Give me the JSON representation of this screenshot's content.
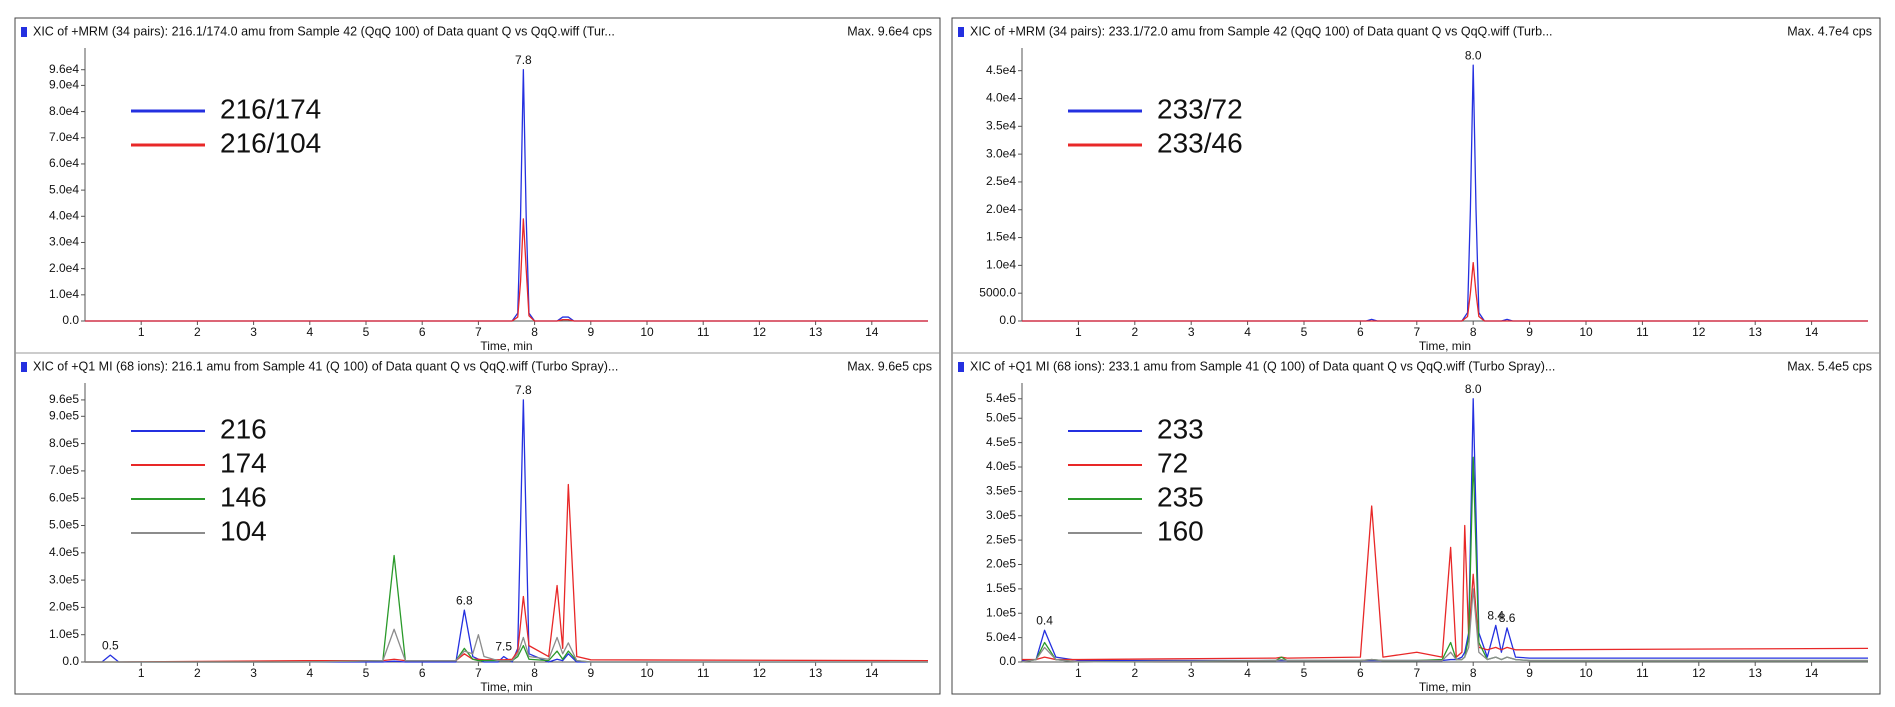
{
  "chart_data": [
    {
      "type": "line",
      "title": "XIC of +MRM (34 pairs): 216.1/174.0 amu from Sample 42 (QqQ 100) of Data quant Q vs QqQ.wiff (Tur...",
      "max_label": "Max. 9.6e4 cps",
      "x_label": "Time, min",
      "xlim": [
        0,
        15
      ],
      "xticks": [
        1,
        2,
        3,
        4,
        5,
        6,
        7,
        8,
        9,
        10,
        11,
        12,
        13,
        14
      ],
      "ylim": [
        0,
        102000
      ],
      "yticks": [
        {
          "value": 0,
          "label": "0.0"
        },
        {
          "value": 10000,
          "label": "1.0e4"
        },
        {
          "value": 20000,
          "label": "2.0e4"
        },
        {
          "value": 30000,
          "label": "3.0e4"
        },
        {
          "value": 40000,
          "label": "4.0e4"
        },
        {
          "value": 50000,
          "label": "5.0e4"
        },
        {
          "value": 60000,
          "label": "6.0e4"
        },
        {
          "value": 70000,
          "label": "7.0e4"
        },
        {
          "value": 80000,
          "label": "8.0e4"
        },
        {
          "value": 90000,
          "label": "9.0e4"
        },
        {
          "value": 96000,
          "label": "9.6e4"
        }
      ],
      "x": [
        0,
        7.6,
        7.7,
        7.75,
        7.8,
        7.85,
        7.9,
        8.0,
        8.4,
        8.5,
        8.6,
        8.7,
        15
      ],
      "series": [
        {
          "name": "216/174",
          "color": "#2430e0",
          "values": [
            0,
            0,
            3000,
            40000,
            96000,
            40000,
            3000,
            0,
            0,
            1500,
            1500,
            0,
            0
          ]
        },
        {
          "name": "216/104",
          "color": "#e82828",
          "values": [
            0,
            0,
            1500,
            15000,
            39000,
            20000,
            2000,
            0,
            0,
            500,
            500,
            0,
            0
          ]
        }
      ],
      "peak_labels": [
        {
          "x": 7.8,
          "y": 96000,
          "label": "7.8"
        }
      ]
    },
    {
      "type": "line",
      "title": "XIC of +MRM (34 pairs): 233.1/72.0 amu from Sample 42 (QqQ 100) of Data quant Q vs QqQ.wiff (Turb...",
      "max_label": "Max. 4.7e4 cps",
      "x_label": "Time, min",
      "xlim": [
        0,
        15
      ],
      "xticks": [
        1,
        2,
        3,
        4,
        5,
        6,
        7,
        8,
        9,
        10,
        11,
        12,
        13,
        14
      ],
      "ylim": [
        0,
        48000
      ],
      "yticks": [
        {
          "value": 0,
          "label": "0.0"
        },
        {
          "value": 5000,
          "label": "5000.0"
        },
        {
          "value": 10000,
          "label": "1.0e4"
        },
        {
          "value": 15000,
          "label": "1.5e4"
        },
        {
          "value": 20000,
          "label": "2.0e4"
        },
        {
          "value": 25000,
          "label": "2.5e4"
        },
        {
          "value": 30000,
          "label": "3.0e4"
        },
        {
          "value": 35000,
          "label": "3.5e4"
        },
        {
          "value": 40000,
          "label": "4.0e4"
        },
        {
          "value": 45000,
          "label": "4.5e4"
        }
      ],
      "x": [
        0,
        6.1,
        6.2,
        6.3,
        7.8,
        7.9,
        7.95,
        8.0,
        8.05,
        8.1,
        8.2,
        8.5,
        8.6,
        8.7,
        15
      ],
      "series": [
        {
          "name": "233/72",
          "color": "#2430e0",
          "values": [
            0,
            0,
            300,
            0,
            0,
            1500,
            20000,
            46000,
            20000,
            1500,
            0,
            0,
            300,
            0,
            0
          ]
        },
        {
          "name": "233/46",
          "color": "#e82828",
          "values": [
            0,
            0,
            0,
            0,
            0,
            800,
            5000,
            10500,
            5000,
            800,
            0,
            0,
            0,
            0,
            0
          ]
        }
      ],
      "peak_labels": [
        {
          "x": 8.0,
          "y": 46000,
          "label": "8.0"
        }
      ]
    },
    {
      "type": "line",
      "title": "XIC of +Q1 MI (68 ions): 216.1 amu from Sample 41 (Q 100) of Data quant Q vs QqQ.wiff (Turbo Spray)...",
      "max_label": "Max. 9.6e5 cps",
      "x_label": "Time, min",
      "xlim": [
        0,
        15
      ],
      "xticks": [
        1,
        2,
        3,
        4,
        5,
        6,
        7,
        8,
        9,
        10,
        11,
        12,
        13,
        14
      ],
      "ylim": [
        0,
        1000000
      ],
      "yticks": [
        {
          "value": 0,
          "label": "0.0"
        },
        {
          "value": 100000,
          "label": "1.0e5"
        },
        {
          "value": 200000,
          "label": "2.0e5"
        },
        {
          "value": 300000,
          "label": "3.0e5"
        },
        {
          "value": 400000,
          "label": "4.0e5"
        },
        {
          "value": 500000,
          "label": "5.0e5"
        },
        {
          "value": 600000,
          "label": "6.0e5"
        },
        {
          "value": 700000,
          "label": "7.0e5"
        },
        {
          "value": 800000,
          "label": "8.0e5"
        },
        {
          "value": 900000,
          "label": "9.0e5"
        },
        {
          "value": 960000,
          "label": "9.6e5"
        }
      ],
      "x": [
        0,
        0.3,
        0.45,
        0.6,
        3.9,
        5.3,
        5.5,
        5.7,
        6.6,
        6.75,
        6.9,
        7.0,
        7.1,
        7.35,
        7.45,
        7.6,
        7.7,
        7.8,
        7.9,
        8.25,
        8.4,
        8.5,
        8.6,
        8.75,
        9.0,
        15
      ],
      "series": [
        {
          "name": "216",
          "color": "#2430e0",
          "values": [
            0,
            0,
            25000,
            0,
            0,
            0,
            3000,
            0,
            0,
            190000,
            20000,
            10000,
            0,
            0,
            20000,
            0,
            50000,
            960000,
            30000,
            0,
            10000,
            5000,
            30000,
            0,
            0,
            0
          ]
        },
        {
          "name": "174",
          "color": "#e82828",
          "values": [
            0,
            0,
            0,
            0,
            5000,
            5000,
            10000,
            5000,
            5000,
            30000,
            10000,
            10000,
            8000,
            8000,
            8000,
            10000,
            40000,
            240000,
            60000,
            20000,
            280000,
            50000,
            650000,
            20000,
            8000,
            5000
          ]
        },
        {
          "name": "146",
          "color": "#2a9a2a",
          "values": [
            0,
            0,
            0,
            0,
            0,
            5000,
            390000,
            5000,
            5000,
            50000,
            10000,
            5000,
            5000,
            5000,
            5000,
            5000,
            20000,
            60000,
            10000,
            5000,
            40000,
            10000,
            40000,
            5000,
            0,
            0
          ]
        },
        {
          "name": "104",
          "color": "#8c8c8c",
          "values": [
            0,
            0,
            0,
            0,
            0,
            5000,
            120000,
            5000,
            5000,
            40000,
            30000,
            100000,
            20000,
            5000,
            5000,
            5000,
            30000,
            90000,
            20000,
            10000,
            90000,
            30000,
            70000,
            5000,
            0,
            0
          ]
        }
      ],
      "peak_labels": [
        {
          "x": 0.45,
          "y": 25000,
          "label": "0.5"
        },
        {
          "x": 6.75,
          "y": 190000,
          "label": "6.8"
        },
        {
          "x": 7.45,
          "y": 20000,
          "label": "7.5"
        },
        {
          "x": 7.8,
          "y": 960000,
          "label": "7.8"
        }
      ]
    },
    {
      "type": "line",
      "title": "XIC of +Q1 MI (68 ions): 233.1 amu from Sample 41 (Q 100) of Data quant Q vs QqQ.wiff (Turbo Spray)...",
      "max_label": "Max. 5.4e5 cps",
      "x_label": "Time, min",
      "xlim": [
        0,
        15
      ],
      "xticks": [
        1,
        2,
        3,
        4,
        5,
        6,
        7,
        8,
        9,
        10,
        11,
        12,
        13,
        14
      ],
      "ylim": [
        0,
        560000
      ],
      "yticks": [
        {
          "value": 0,
          "label": "0.0"
        },
        {
          "value": 50000,
          "label": "5.0e4"
        },
        {
          "value": 100000,
          "label": "1.0e5"
        },
        {
          "value": 150000,
          "label": "1.5e5"
        },
        {
          "value": 200000,
          "label": "2.0e5"
        },
        {
          "value": 250000,
          "label": "2.5e5"
        },
        {
          "value": 300000,
          "label": "3.0e5"
        },
        {
          "value": 350000,
          "label": "3.5e5"
        },
        {
          "value": 400000,
          "label": "4.0e5"
        },
        {
          "value": 450000,
          "label": "4.5e5"
        },
        {
          "value": 500000,
          "label": "5.0e5"
        },
        {
          "value": 540000,
          "label": "5.4e5"
        }
      ],
      "x": [
        0,
        0.25,
        0.4,
        0.6,
        1,
        4.5,
        4.6,
        4.7,
        6.0,
        6.2,
        6.4,
        7.0,
        7.45,
        7.6,
        7.7,
        7.8,
        7.85,
        7.92,
        8.0,
        8.1,
        8.25,
        8.4,
        8.5,
        8.6,
        8.75,
        9.0,
        15
      ],
      "series": [
        {
          "name": "233",
          "color": "#2430e0",
          "values": [
            3000,
            5000,
            65000,
            10000,
            3000,
            3000,
            3000,
            3000,
            3000,
            3000,
            3000,
            3000,
            3000,
            5000,
            5000,
            10000,
            20000,
            60000,
            540000,
            60000,
            10000,
            75000,
            20000,
            70000,
            10000,
            8000,
            8000
          ]
        },
        {
          "name": "72",
          "color": "#e82828",
          "values": [
            5000,
            5000,
            10000,
            5000,
            5000,
            8000,
            10000,
            8000,
            10000,
            320000,
            10000,
            20000,
            10000,
            235000,
            10000,
            20000,
            280000,
            50000,
            180000,
            30000,
            25000,
            30000,
            25000,
            30000,
            25000,
            25000,
            28000
          ]
        },
        {
          "name": "235",
          "color": "#2a9a2a",
          "values": [
            0,
            5000,
            40000,
            5000,
            0,
            3000,
            10000,
            3000,
            3000,
            5000,
            3000,
            3000,
            5000,
            40000,
            5000,
            5000,
            10000,
            50000,
            420000,
            40000,
            5000,
            10000,
            5000,
            10000,
            5000,
            3000,
            3000
          ]
        },
        {
          "name": "160",
          "color": "#8c8c8c",
          "values": [
            0,
            5000,
            30000,
            5000,
            0,
            3000,
            5000,
            3000,
            3000,
            5000,
            3000,
            3000,
            3000,
            20000,
            5000,
            5000,
            10000,
            30000,
            150000,
            20000,
            5000,
            10000,
            5000,
            10000,
            5000,
            3000,
            3000
          ]
        }
      ],
      "peak_labels": [
        {
          "x": 0.4,
          "y": 65000,
          "label": "0.4"
        },
        {
          "x": 8.0,
          "y": 540000,
          "label": "8.0"
        },
        {
          "x": 8.4,
          "y": 75000,
          "label": "8.4"
        },
        {
          "x": 8.6,
          "y": 70000,
          "label": "8.6"
        }
      ]
    }
  ]
}
